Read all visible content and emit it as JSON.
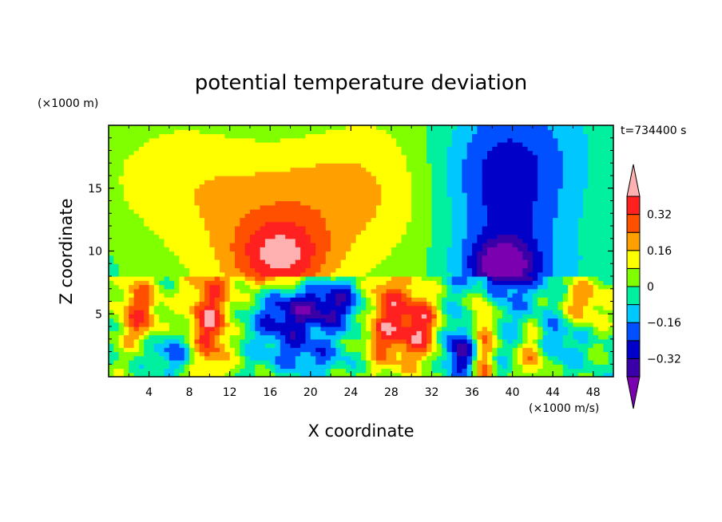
{
  "chart_data": {
    "type": "heatmap",
    "title": "potential temperature deviation",
    "xlabel": "X coordinate",
    "ylabel": "Z coordinate",
    "x_unit": "(×1000 m/s)",
    "y_unit": "(×1000 m)",
    "time_label": "t=734400 s",
    "xlim": [
      0,
      50
    ],
    "ylim": [
      0,
      20
    ],
    "x_ticks": [
      4,
      8,
      12,
      16,
      20,
      24,
      28,
      32,
      36,
      40,
      44,
      48
    ],
    "y_ticks": [
      5,
      10,
      15
    ],
    "colorbar": {
      "levels": [
        -0.4,
        -0.32,
        -0.24,
        -0.16,
        -0.08,
        0,
        0.08,
        0.16,
        0.24,
        0.32,
        0.4
      ],
      "colors": [
        "#7a00b0",
        "#3a00a8",
        "#0000c8",
        "#0050ff",
        "#00c8ff",
        "#00f0a0",
        "#80ff00",
        "#ffff00",
        "#ffa000",
        "#ff5000",
        "#ff2020",
        "#ffb0b0"
      ],
      "tick_labels": [
        {
          "value": 0.32,
          "text": "0.32"
        },
        {
          "value": 0.16,
          "text": "0.16"
        },
        {
          "value": 0,
          "text": "0"
        },
        {
          "value": -0.16,
          "text": "−0.16"
        },
        {
          "value": -0.32,
          "text": "−0.32"
        }
      ]
    },
    "field_blobs": [
      {
        "x": 17,
        "z": 11,
        "rx": 9,
        "rz": 7,
        "value": 0.2
      },
      {
        "x": 17,
        "z": 9.5,
        "rx": 4.5,
        "rz": 3,
        "value": 0.28
      },
      {
        "x": 25,
        "z": 16,
        "rx": 8,
        "rz": 6,
        "value": 0.12
      },
      {
        "x": 39,
        "z": 13,
        "rx": 6,
        "rz": 9,
        "value": -0.24
      },
      {
        "x": 39,
        "z": 9,
        "rx": 3,
        "rz": 1.8,
        "value": -0.34
      },
      {
        "x": 39,
        "z": 17,
        "rx": 11,
        "rz": 4,
        "value": -0.1
      },
      {
        "x": 6,
        "z": 16,
        "rx": 9,
        "rz": 5,
        "value": 0.06
      },
      {
        "x": 10,
        "z": 4,
        "rx": 2,
        "rz": 4,
        "value": 0.35
      },
      {
        "x": 3,
        "z": 5,
        "rx": 2,
        "rz": 3,
        "value": 0.3
      },
      {
        "x": 17,
        "z": 5,
        "rx": 4,
        "rz": 3,
        "value": -0.3
      },
      {
        "x": 22,
        "z": 6,
        "rx": 5,
        "rz": 2.5,
        "value": -0.38
      },
      {
        "x": 27.5,
        "z": 5,
        "rx": 2.5,
        "rz": 4,
        "value": 0.4
      },
      {
        "x": 31,
        "z": 4,
        "rx": 2,
        "rz": 3,
        "value": 0.34
      },
      {
        "x": 37,
        "z": 3,
        "rx": 1.2,
        "rz": 5,
        "value": 0.36
      },
      {
        "x": 35,
        "z": 2,
        "rx": 2,
        "rz": 2,
        "value": -0.34
      },
      {
        "x": 42,
        "z": 2,
        "rx": 1.5,
        "rz": 2.5,
        "value": 0.3
      },
      {
        "x": 47,
        "z": 6,
        "rx": 2.5,
        "rz": 2,
        "value": 0.24
      },
      {
        "x": 20,
        "z": 1.5,
        "rx": 4,
        "rz": 1.5,
        "value": -0.18
      },
      {
        "x": 6,
        "z": 2,
        "rx": 3,
        "rz": 1.5,
        "value": -0.2
      },
      {
        "x": 44,
        "z": 3,
        "rx": 3,
        "rz": 2,
        "value": -0.16
      }
    ]
  }
}
